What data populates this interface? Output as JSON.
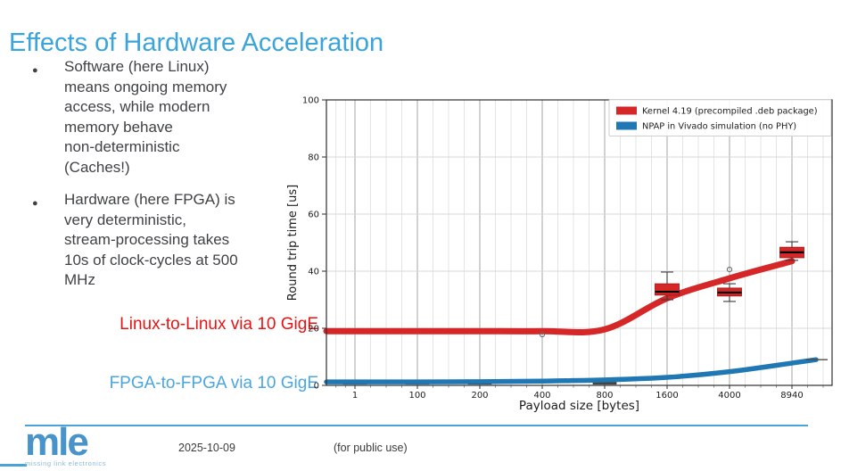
{
  "slide": {
    "title": "Effects of Hardware Acceleration",
    "bullets": [
      [
        "Software (here Linux)",
        "means ongoing memory",
        "access, while modern",
        "memory behave",
        "non-deterministic",
        "(Caches!)"
      ],
      [
        "Hardware (here FPGA) is",
        "very deterministic,",
        "stream-processing takes",
        "10s of clock-cycles at 500",
        "MHz"
      ]
    ],
    "annotations": {
      "linux_label": "Linux-to-Linux via 10 GigE",
      "fpga_label": "FPGA-to-FPGA via 10 GigE"
    },
    "footer": {
      "logo_text": "mle",
      "logo_tagline": "missing link electronics",
      "date": "2025-10-09",
      "note": "(for public use)"
    },
    "colors": {
      "title_blue": "#3aa4db",
      "text_dark": "#3f4245",
      "label_red": "#ea1212",
      "label_blue": "#4aa6e0",
      "footer_line_blue": "#4aa3d6",
      "logo_blue": "#4793ca",
      "logo_tagline_blue": "#8cb8da"
    }
  },
  "chart_data": {
    "type": "line+boxplot",
    "title": "",
    "xlabel": "Payload size [bytes]",
    "ylabel": "Round trip time [us]",
    "x_ticks": [
      "1",
      "100",
      "200",
      "400",
      "800",
      "1600",
      "4000",
      "8940"
    ],
    "y_ticks": [
      0,
      20,
      40,
      60,
      80,
      100
    ],
    "ylim": [
      0,
      100
    ],
    "grid": true,
    "legend_position": "upper right",
    "series": [
      {
        "name": "Kernel 4.19 (precompiled .deb package)",
        "color": "#d62728",
        "values": [
          19,
          19,
          19,
          19,
          19.6,
          30.5,
          37.5,
          43.5
        ],
        "start_edge_value": 19,
        "boxplots": [
          {
            "tick": "400",
            "outliers": [
              17.8
            ]
          },
          {
            "tick": "1600",
            "q1": 31.6,
            "q3": 35.6,
            "median": 32.8,
            "whisker_low": 30.0,
            "whisker_high": 39.7
          },
          {
            "tick": "4000",
            "q1": 31.3,
            "q3": 34.1,
            "median": 32.5,
            "whisker_low": 29.4,
            "whisker_high": 35.6,
            "outliers": [
              40.6
            ]
          },
          {
            "tick": "8940",
            "q1": 44.7,
            "q3": 48.4,
            "median": 46.6,
            "whisker_low": 43.8,
            "whisker_high": 50.3
          }
        ]
      },
      {
        "name": "NPAP in Vivado simulation (no PHY)",
        "color": "#1f77b4",
        "values": [
          1.2,
          1.2,
          1.3,
          1.5,
          1.9,
          2.8,
          4.8,
          7.8
        ],
        "start_edge_value": 1.2,
        "end_edge_value": 9,
        "end_cap_value": 9,
        "box_style": "dark-small",
        "boxplots": [
          {
            "tick": "1",
            "q1": 0.4,
            "q3": 1.1,
            "median": 0.8
          },
          {
            "tick": "100",
            "q1": 0.4,
            "q3": 1.1,
            "median": 0.8
          },
          {
            "tick": "200",
            "q1": 0.4,
            "q3": 1.1,
            "median": 0.8
          },
          {
            "tick": "800",
            "q1": 0.4,
            "q3": 1.1,
            "median": 0.8
          }
        ]
      }
    ]
  }
}
